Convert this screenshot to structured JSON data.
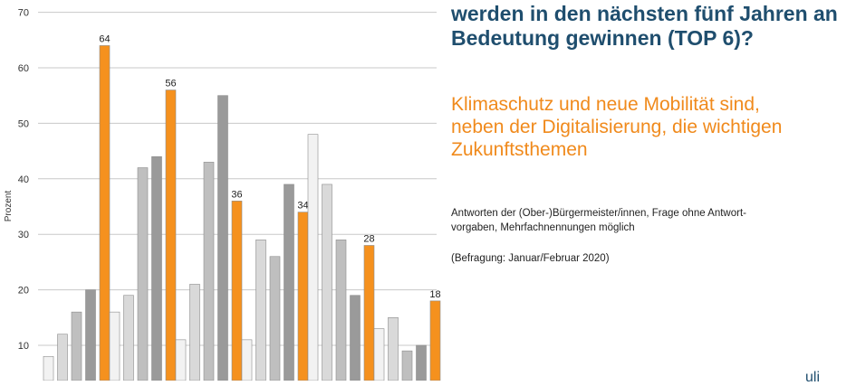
{
  "chart_data": {
    "type": "bar",
    "ylabel": "Prozent",
    "ylim": [
      0,
      70
    ],
    "yticks": [
      10,
      20,
      30,
      40,
      50,
      60,
      70
    ],
    "grid": true,
    "groups": [
      {
        "values": [
          8,
          12,
          16,
          20,
          64
        ],
        "label": "64"
      },
      {
        "values": [
          16,
          19,
          42,
          44,
          56
        ],
        "label": "56"
      },
      {
        "values": [
          11,
          21,
          43,
          55,
          36
        ],
        "label": "36"
      },
      {
        "values": [
          11,
          29,
          26,
          39,
          34
        ],
        "label": "34"
      },
      {
        "values": [
          48,
          39,
          29,
          19,
          28
        ],
        "label": "28"
      },
      {
        "values": [
          13,
          15,
          9,
          10,
          18
        ],
        "label": "18"
      }
    ],
    "series_colors": [
      "#f2f2f2",
      "#d9d9d9",
      "#bfbfbf",
      "#9a9a9a",
      "#f5911e"
    ]
  },
  "text": {
    "question_lines": [
      "werden in den nächsten fünf Jahren an",
      "Bedeutung gewinnen (TOP 6)?"
    ],
    "headline_lines": [
      "Klimaschutz und neue Mobilität sind,",
      "neben der Digitalisierung, die wichtigen",
      "Zukunftsthemen"
    ],
    "note_lines": [
      "Antworten der (Ober-)Bürgermeister/innen, Frage ohne Antwort-",
      "vorgaben, Mehrfachnennungen möglich"
    ],
    "survey": "(Befragung: Januar/Februar 2020)",
    "logo_fragment": "uli"
  },
  "colors": {
    "question": "#1f4e6e",
    "headline": "#f08a1c",
    "highlight_bar": "#f5911e"
  }
}
